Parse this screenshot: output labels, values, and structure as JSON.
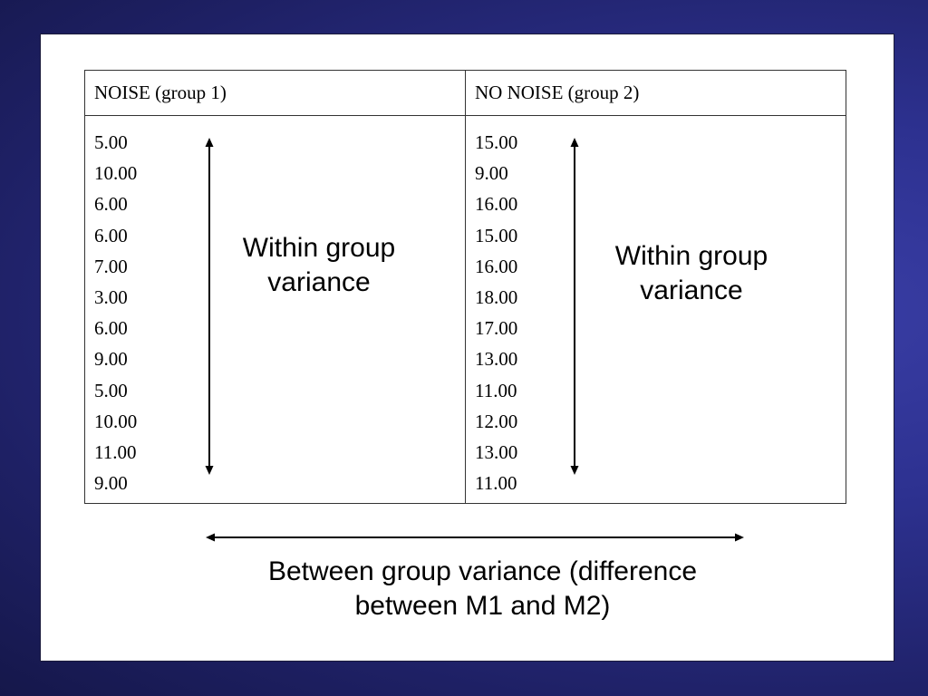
{
  "table": {
    "headers": [
      "NOISE (group 1)",
      "NO NOISE (group 2)"
    ],
    "group1_values": [
      "5.00",
      "10.00",
      "6.00",
      "6.00",
      "7.00",
      "3.00",
      "6.00",
      "9.00",
      "5.00",
      "10.00",
      "11.00",
      "9.00"
    ],
    "group2_values": [
      "15.00",
      "9.00",
      "16.00",
      "15.00",
      "16.00",
      "18.00",
      "17.00",
      "13.00",
      "11.00",
      "12.00",
      "13.00",
      "11.00"
    ]
  },
  "annotations": {
    "within_group_1": [
      "Within group",
      "variance"
    ],
    "within_group_2": [
      "Within group",
      "variance"
    ],
    "between_group": [
      "Between group variance (difference",
      "between M1 and M2)"
    ]
  },
  "colors": {
    "background": "#2d3190",
    "panel": "#ffffff",
    "text": "#000000"
  }
}
